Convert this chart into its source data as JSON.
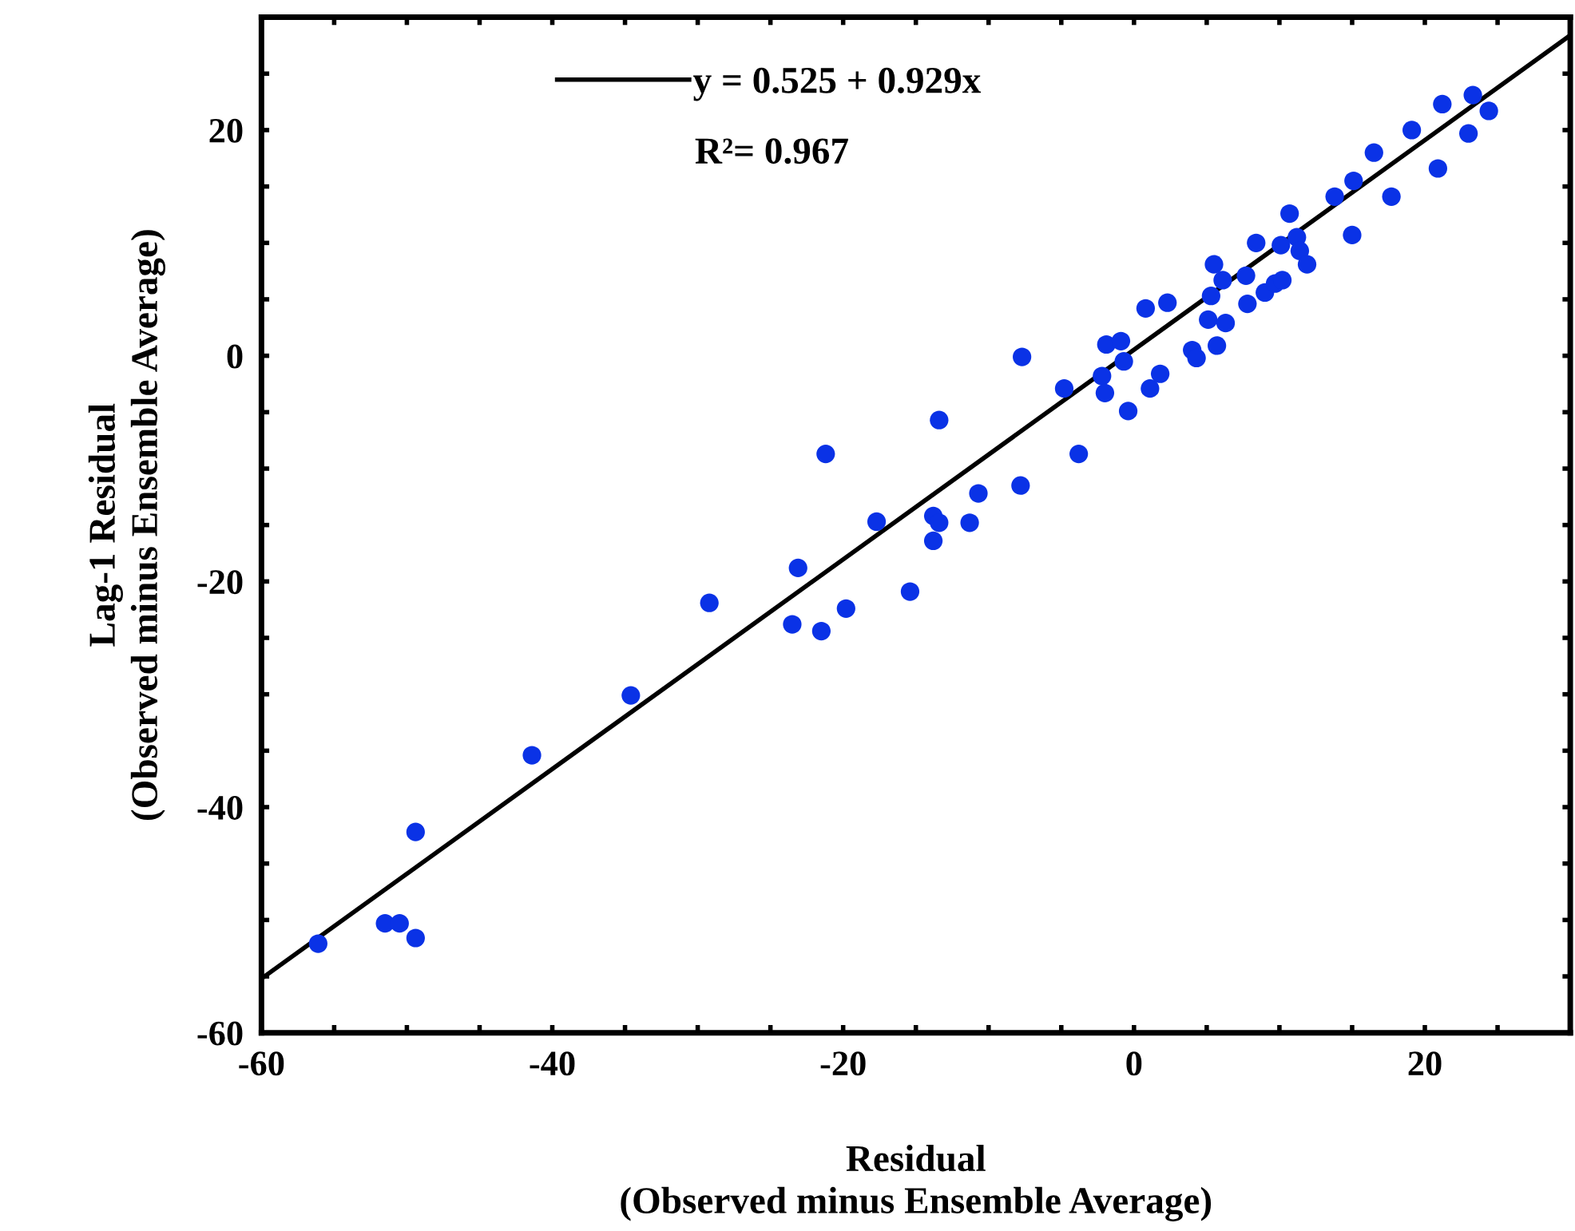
{
  "chart_data": {
    "type": "scatter",
    "xlabel": "Residual\n(Observed minus Ensemble Average)",
    "ylabel": "Lag-1 Residual\n(Observed minus Ensemble Average)",
    "xlim": [
      -60,
      30
    ],
    "ylim": [
      -60,
      30
    ],
    "xticks": [
      -60,
      {
        "value": -55,
        "label": null
      },
      -40,
      {
        "value": -50,
        "label": null
      },
      {
        "value": -45,
        "label": null
      },
      {
        "value": -35,
        "label": null
      },
      {
        "value": -30,
        "label": null
      },
      {
        "value": -25,
        "label": null
      },
      -20,
      {
        "value": -15,
        "label": null
      },
      {
        "value": -10,
        "label": null
      },
      {
        "value": -5,
        "label": null
      },
      0,
      {
        "value": 5,
        "label": null
      },
      {
        "value": 10,
        "label": null
      },
      {
        "value": 15,
        "label": null
      },
      20,
      {
        "value": 25,
        "label": null
      }
    ],
    "yticks": [
      -60,
      {
        "value": -55,
        "label": null
      },
      {
        "value": -50,
        "label": null
      },
      {
        "value": -45,
        "label": null
      },
      -40,
      {
        "value": -35,
        "label": null
      },
      {
        "value": -30,
        "label": null
      },
      {
        "value": -25,
        "label": null
      },
      -20,
      {
        "value": -15,
        "label": null
      },
      {
        "value": -10,
        "label": null
      },
      {
        "value": -5,
        "label": null
      },
      0,
      {
        "value": 5,
        "label": null
      },
      {
        "value": 10,
        "label": null
      },
      {
        "value": 15,
        "label": null
      },
      20,
      {
        "value": 25,
        "label": null
      }
    ],
    "grid": false,
    "legend": "top",
    "marker": "circle",
    "annotations": [
      "R²= 0.967"
    ],
    "series": [
      {
        "color": "#0a32e6",
        "x": [
          -56.1,
          -51.5,
          -50.5,
          -49.4,
          -49.4,
          -41.4,
          -34.6,
          -29.2,
          -21.2,
          -13.4,
          -4.8,
          -3.8,
          -7.8,
          -10.7,
          -11.3,
          -13.8,
          -13.4,
          -13.8,
          -17.7,
          -15.4,
          -23.1,
          -19.8,
          -23.5,
          -21.5,
          -7.7,
          -2.2,
          -2.0,
          -1.9,
          -0.9,
          -0.7,
          -0.4,
          0.8,
          2.3,
          1.1,
          1.8,
          4.0,
          4.3,
          5.1,
          5.7,
          5.3,
          6.3,
          5.5,
          6.1,
          7.7,
          7.8,
          8.4,
          9.0,
          9.7,
          10.1,
          10.2,
          10.7,
          11.2,
          11.4,
          11.9,
          13.8,
          15.0,
          15.1,
          16.5,
          17.7,
          19.1,
          20.9,
          21.2,
          23.0,
          23.3,
          24.4
        ],
        "values": [
          -52.1,
          -50.3,
          -50.3,
          -51.6,
          -42.2,
          -35.4,
          -30.1,
          -21.9,
          -8.7,
          -5.7,
          -2.9,
          -8.7,
          -11.5,
          -12.2,
          -14.8,
          -14.2,
          -14.8,
          -16.4,
          -14.7,
          -20.9,
          -18.8,
          -22.4,
          -23.8,
          -24.4,
          -0.1,
          -1.8,
          -3.3,
          1.0,
          1.3,
          -0.5,
          -4.9,
          4.2,
          4.7,
          -2.9,
          -1.6,
          0.5,
          -0.2,
          3.2,
          0.9,
          5.3,
          2.9,
          8.1,
          6.7,
          7.1,
          4.6,
          10.0,
          5.6,
          6.4,
          9.8,
          6.7,
          12.6,
          10.5,
          9.3,
          8.1,
          14.1,
          10.7,
          15.5,
          18.0,
          14.1,
          20.0,
          16.6,
          22.3,
          19.7,
          23.1,
          21.7
        ]
      },
      {
        "type": "line",
        "name": "y = 0.525 + 0.929x",
        "color": "#000000",
        "marker": "none",
        "line_style": "solid",
        "x": [
          -60,
          30
        ],
        "values": [
          -55.2,
          28.4
        ]
      }
    ]
  }
}
